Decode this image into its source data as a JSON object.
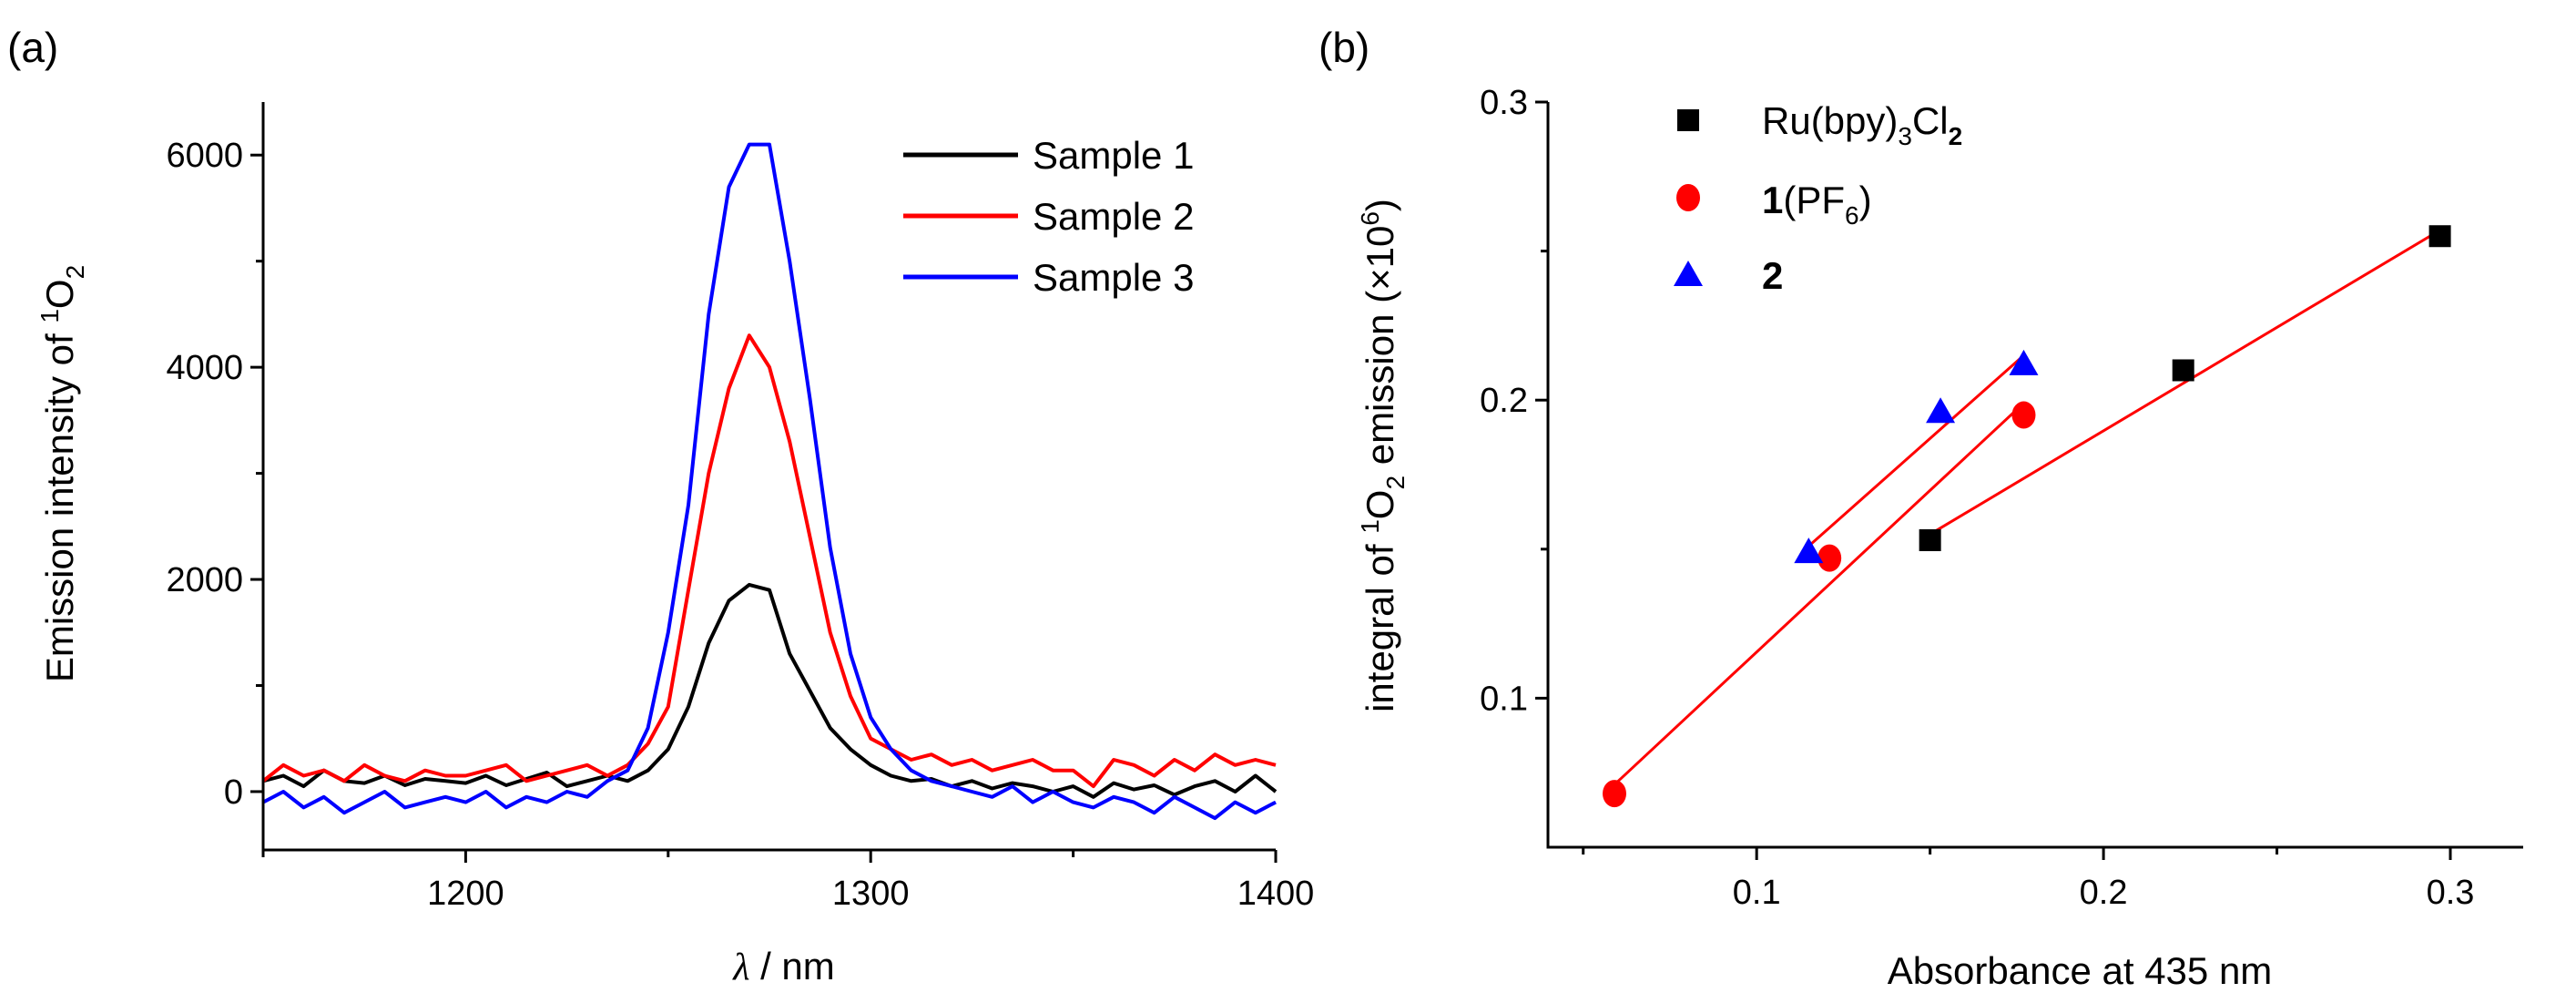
{
  "chart_data": [
    {
      "panel_label": "(a)",
      "type": "line",
      "xlabel_symbol": "λ",
      "xlabel_rest": " / nm",
      "ylabel": {
        "text": "Emission intensity of ",
        "sup": "1",
        "base": "O",
        "sub": "2"
      },
      "xlim": [
        1150,
        1400
      ],
      "ylim": [
        -550,
        6500
      ],
      "xticks": [
        1200,
        1300,
        1400
      ],
      "yticks": [
        0,
        2000,
        4000,
        6000
      ],
      "legend_position": "top-right",
      "x": [
        1150,
        1155,
        1160,
        1165,
        1170,
        1175,
        1180,
        1185,
        1190,
        1195,
        1200,
        1205,
        1210,
        1215,
        1220,
        1225,
        1230,
        1235,
        1240,
        1245,
        1250,
        1255,
        1260,
        1265,
        1270,
        1275,
        1280,
        1285,
        1290,
        1295,
        1300,
        1305,
        1310,
        1315,
        1320,
        1325,
        1330,
        1335,
        1340,
        1345,
        1350,
        1355,
        1360,
        1365,
        1370,
        1375,
        1380,
        1385,
        1390,
        1395,
        1400
      ],
      "series": [
        {
          "name": "Sample 1",
          "color": "#000000",
          "values": [
            100,
            150,
            50,
            200,
            100,
            80,
            150,
            60,
            120,
            100,
            80,
            150,
            60,
            120,
            180,
            50,
            100,
            150,
            100,
            200,
            400,
            800,
            1400,
            1800,
            1950,
            1900,
            1300,
            950,
            600,
            400,
            250,
            150,
            100,
            120,
            50,
            100,
            30,
            80,
            50,
            0,
            50,
            -50,
            80,
            20,
            60,
            -30,
            50,
            100,
            0,
            150,
            0
          ]
        },
        {
          "name": "Sample 2",
          "color": "#ff0000",
          "values": [
            100,
            250,
            150,
            200,
            100,
            250,
            150,
            100,
            200,
            150,
            150,
            200,
            250,
            100,
            150,
            200,
            250,
            150,
            250,
            450,
            800,
            1900,
            3000,
            3800,
            4300,
            4000,
            3300,
            2400,
            1500,
            900,
            500,
            400,
            300,
            350,
            250,
            300,
            200,
            250,
            300,
            200,
            200,
            50,
            300,
            250,
            150,
            300,
            200,
            350,
            250,
            300,
            250
          ]
        },
        {
          "name": "Sample 3",
          "color": "#0000ff",
          "values": [
            -100,
            0,
            -150,
            -50,
            -200,
            -100,
            0,
            -150,
            -100,
            -50,
            -100,
            0,
            -150,
            -50,
            -100,
            0,
            -50,
            100,
            200,
            600,
            1500,
            2700,
            4500,
            5700,
            6100,
            6100,
            5000,
            3700,
            2300,
            1300,
            700,
            400,
            200,
            100,
            50,
            0,
            -50,
            50,
            -100,
            0,
            -100,
            -150,
            -50,
            -100,
            -200,
            -50,
            -150,
            -250,
            -100,
            -200,
            -100
          ]
        }
      ]
    },
    {
      "panel_label": "(b)",
      "type": "scatter",
      "xlabel": "Absorbance at 435 nm",
      "ylabel": {
        "text": "integral of ",
        "sup": "1",
        "base": "O",
        "sub": "2",
        "rest": " emission (×10",
        "sup2": "6",
        "close": ")"
      },
      "xlim": [
        0.038,
        0.321
      ],
      "ylim": [
        0.05,
        0.3
      ],
      "xticks": [
        0.1,
        0.2,
        0.3
      ],
      "yticks": [
        0.1,
        0.2,
        0.3
      ],
      "legend_position": "top-left",
      "series": [
        {
          "name_main": "Ru(bpy)",
          "name_sub1": "3",
          "name_mid": "Cl",
          "name_sub2": "2",
          "marker": "square",
          "color": "#000000",
          "x": [
            0.15,
            0.223,
            0.297
          ],
          "y": [
            0.153,
            0.21,
            0.255
          ],
          "fit": [
            [
              0.15,
              0.155
            ],
            [
              0.297,
              0.257
            ]
          ]
        },
        {
          "name_bold": "1",
          "name_main": "(PF",
          "name_sub1": "6",
          "name_mid": ")",
          "marker": "circle",
          "color": "#ff0000",
          "x": [
            0.059,
            0.121,
            0.177
          ],
          "y": [
            0.068,
            0.147,
            0.195
          ],
          "fit": [
            [
              0.059,
              0.071
            ],
            [
              0.177,
              0.199
            ]
          ]
        },
        {
          "name_bold": "2",
          "marker": "triangle",
          "color": "#0000ff",
          "x": [
            0.115,
            0.153,
            0.177
          ],
          "y": [
            0.149,
            0.196,
            0.212
          ],
          "fit": [
            [
              0.115,
              0.151
            ],
            [
              0.177,
              0.215
            ]
          ]
        }
      ],
      "fit_color": "#ff0000"
    }
  ]
}
